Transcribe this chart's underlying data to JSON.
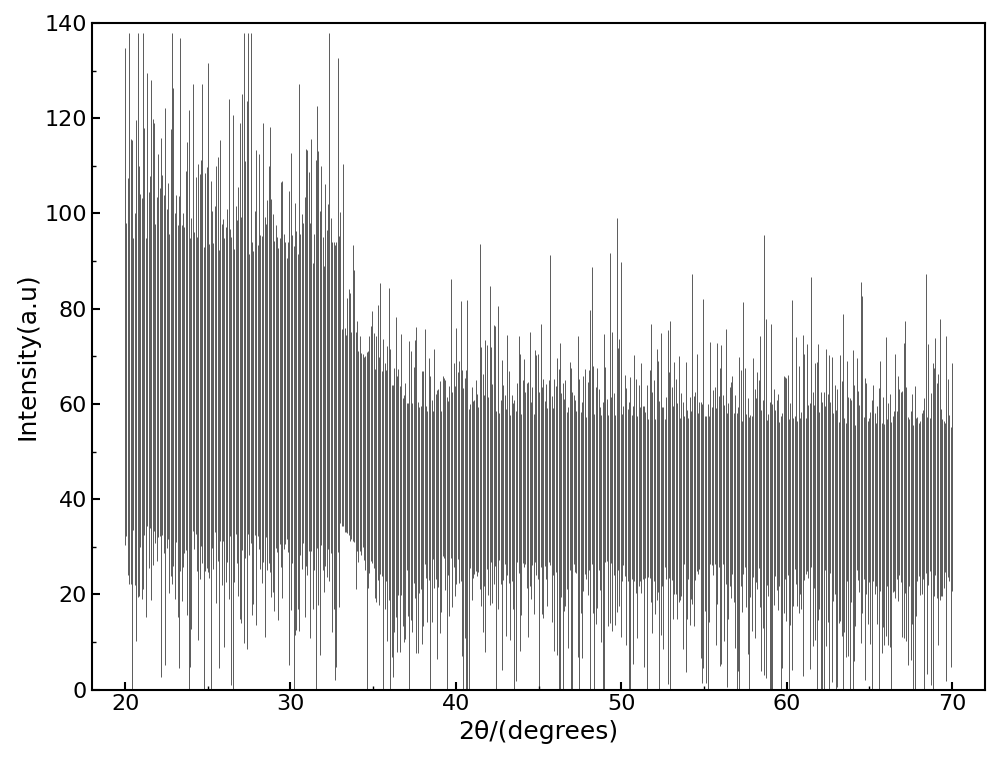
{
  "xlabel": "2θ/(degrees)",
  "ylabel": "Intensity(a.u)",
  "xlim": [
    18,
    72
  ],
  "ylim": [
    0,
    140
  ],
  "xticks": [
    20,
    30,
    40,
    50,
    60,
    70
  ],
  "yticks": [
    0,
    20,
    40,
    60,
    80,
    100,
    120,
    140
  ],
  "line_color": "#1a1a1a",
  "background_color": "#ffffff",
  "linewidth": 0.5,
  "seed": 12345,
  "n_bars": 600,
  "x_start": 20.0,
  "x_end": 70.0,
  "xlabel_fontsize": 18,
  "ylabel_fontsize": 18,
  "tick_fontsize": 16,
  "fig_width": 10.0,
  "fig_height": 7.59
}
